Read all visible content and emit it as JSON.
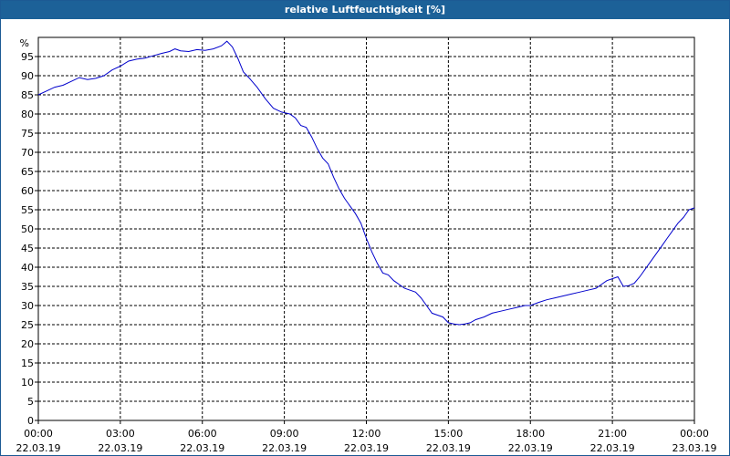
{
  "window": {
    "title": "relative Luftfeuchtigkeit [%]"
  },
  "chart_data": {
    "type": "line",
    "title": "relative Luftfeuchtigkeit [%]",
    "ylabel": "%",
    "xlabel": "",
    "ylim": [
      0,
      100
    ],
    "yticks": [
      0,
      5,
      10,
      15,
      20,
      25,
      30,
      35,
      40,
      45,
      50,
      55,
      60,
      65,
      70,
      75,
      80,
      85,
      90,
      95
    ],
    "xlim_hours": [
      0,
      24
    ],
    "xticks": [
      {
        "time": "00:00",
        "date": "22.03.19"
      },
      {
        "time": "03:00",
        "date": "22.03.19"
      },
      {
        "time": "06:00",
        "date": "22.03.19"
      },
      {
        "time": "09:00",
        "date": "22.03.19"
      },
      {
        "time": "12:00",
        "date": "22.03.19"
      },
      {
        "time": "15:00",
        "date": "22.03.19"
      },
      {
        "time": "18:00",
        "date": "22.03.19"
      },
      {
        "time": "21:00",
        "date": "22.03.19"
      },
      {
        "time": "00:00",
        "date": "23.03.19"
      }
    ],
    "grid": true,
    "legend": "none",
    "line_color": "#0000cc",
    "series": [
      {
        "values": [
          [
            0.0,
            85.0
          ],
          [
            0.3,
            86.0
          ],
          [
            0.6,
            87.0
          ],
          [
            0.9,
            87.5
          ],
          [
            1.2,
            88.5
          ],
          [
            1.5,
            89.5
          ],
          [
            1.8,
            89.0
          ],
          [
            2.1,
            89.3
          ],
          [
            2.4,
            90.0
          ],
          [
            2.7,
            91.5
          ],
          [
            3.0,
            92.5
          ],
          [
            3.3,
            93.8
          ],
          [
            3.6,
            94.3
          ],
          [
            3.9,
            94.6
          ],
          [
            4.2,
            95.2
          ],
          [
            4.5,
            95.8
          ],
          [
            4.8,
            96.3
          ],
          [
            5.0,
            97.0
          ],
          [
            5.2,
            96.5
          ],
          [
            5.5,
            96.3
          ],
          [
            5.8,
            96.8
          ],
          [
            6.1,
            96.6
          ],
          [
            6.4,
            97.0
          ],
          [
            6.7,
            97.8
          ],
          [
            6.9,
            99.0
          ],
          [
            7.1,
            97.5
          ],
          [
            7.3,
            94.5
          ],
          [
            7.5,
            91.0
          ],
          [
            7.7,
            89.5
          ],
          [
            8.0,
            87.0
          ],
          [
            8.3,
            84.0
          ],
          [
            8.6,
            81.5
          ],
          [
            8.9,
            80.5
          ],
          [
            9.2,
            80.0
          ],
          [
            9.4,
            79.0
          ],
          [
            9.6,
            77.0
          ],
          [
            9.8,
            76.5
          ],
          [
            10.0,
            74.0
          ],
          [
            10.2,
            71.0
          ],
          [
            10.4,
            68.5
          ],
          [
            10.6,
            67.0
          ],
          [
            10.8,
            63.5
          ],
          [
            11.0,
            60.5
          ],
          [
            11.2,
            58.0
          ],
          [
            11.4,
            56.0
          ],
          [
            11.6,
            54.0
          ],
          [
            11.8,
            51.5
          ],
          [
            12.0,
            47.5
          ],
          [
            12.2,
            44.0
          ],
          [
            12.4,
            41.0
          ],
          [
            12.6,
            38.5
          ],
          [
            12.8,
            38.0
          ],
          [
            13.0,
            36.5
          ],
          [
            13.2,
            35.5
          ],
          [
            13.4,
            34.5
          ],
          [
            13.6,
            34.0
          ],
          [
            13.8,
            33.5
          ],
          [
            14.0,
            32.0
          ],
          [
            14.2,
            30.0
          ],
          [
            14.4,
            28.0
          ],
          [
            14.6,
            27.5
          ],
          [
            14.8,
            27.0
          ],
          [
            15.0,
            25.5
          ],
          [
            15.2,
            25.2
          ],
          [
            15.4,
            25.0
          ],
          [
            15.6,
            25.2
          ],
          [
            15.8,
            25.5
          ],
          [
            16.0,
            26.3
          ],
          [
            16.3,
            27.0
          ],
          [
            16.6,
            28.0
          ],
          [
            16.9,
            28.5
          ],
          [
            17.2,
            29.0
          ],
          [
            17.5,
            29.5
          ],
          [
            17.8,
            30.0
          ],
          [
            18.0,
            30.0
          ],
          [
            18.3,
            30.8
          ],
          [
            18.6,
            31.5
          ],
          [
            18.9,
            32.0
          ],
          [
            19.2,
            32.5
          ],
          [
            19.5,
            33.0
          ],
          [
            19.8,
            33.5
          ],
          [
            20.1,
            34.0
          ],
          [
            20.4,
            34.5
          ],
          [
            20.6,
            35.5
          ],
          [
            20.8,
            36.5
          ],
          [
            21.0,
            37.0
          ],
          [
            21.2,
            37.5
          ],
          [
            21.4,
            35.0
          ],
          [
            21.6,
            35.2
          ],
          [
            21.8,
            35.8
          ],
          [
            22.0,
            37.5
          ],
          [
            22.2,
            39.5
          ],
          [
            22.4,
            41.5
          ],
          [
            22.6,
            43.5
          ],
          [
            22.8,
            45.5
          ],
          [
            23.0,
            47.5
          ],
          [
            23.2,
            49.5
          ],
          [
            23.4,
            51.5
          ],
          [
            23.6,
            53.0
          ],
          [
            23.8,
            55.0
          ],
          [
            24.0,
            55.5
          ]
        ]
      }
    ]
  }
}
